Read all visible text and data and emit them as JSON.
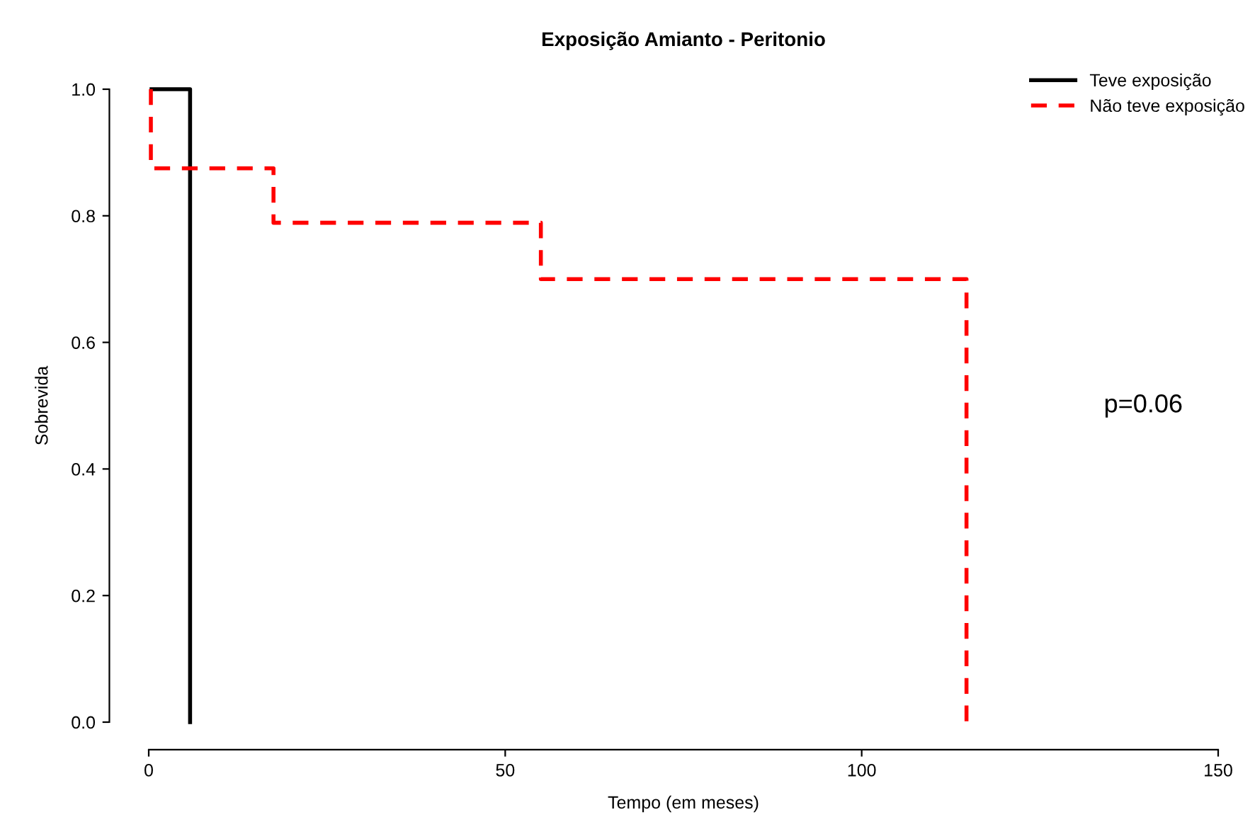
{
  "chart_data": {
    "type": "step",
    "title": "Exposição Amianto - Peritonio",
    "xlabel": "Tempo (em meses)",
    "ylabel": "Sobrevida",
    "series": [
      {
        "name": "Teve exposição",
        "color": "#000000",
        "line_style": "solid",
        "x": [
          0.4,
          5.8
        ],
        "values": [
          1.0,
          0.0
        ]
      },
      {
        "name": "Não teve exposição",
        "color": "#ff0000",
        "line_style": "dashed",
        "x": [
          0.3,
          0.3,
          17.5,
          55,
          114.7
        ],
        "values": [
          1.0,
          0.875,
          0.789,
          0.7,
          0.0
        ]
      }
    ],
    "xlim": [
      0,
      150
    ],
    "xticks": [
      0,
      50,
      100,
      150
    ],
    "ylim": [
      0,
      1
    ],
    "yticks": [
      {
        "value": 0,
        "label": "0.0"
      },
      {
        "value": 0.2,
        "label": "0.2"
      },
      {
        "value": 0.4,
        "label": "0.4"
      },
      {
        "value": 0.6,
        "label": "0.6"
      },
      {
        "value": 0.8,
        "label": "0.8"
      },
      {
        "value": 1,
        "label": "1.0"
      }
    ],
    "annotations": [
      "p=0.06"
    ],
    "legend": "top right",
    "grid": false
  }
}
